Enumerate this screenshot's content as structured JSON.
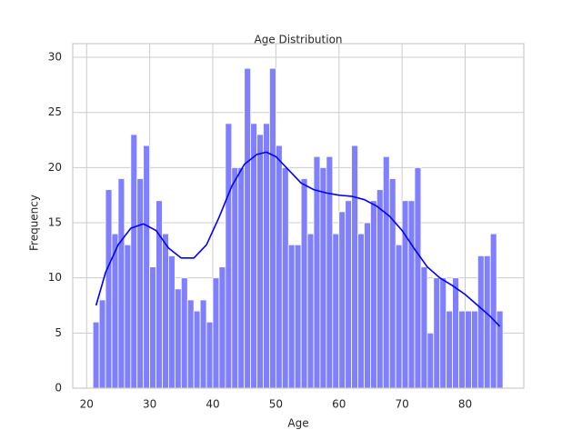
{
  "chart_data": {
    "type": "histogram",
    "title": "Age Distribution",
    "x_label": "Age",
    "y_label": "Frequency",
    "bins": [
      21,
      22,
      23,
      24,
      25,
      26,
      27,
      28,
      29,
      30,
      31,
      32,
      33,
      34,
      35,
      36,
      37,
      38,
      39,
      40,
      41,
      42,
      43,
      44,
      45,
      46,
      47,
      48,
      49,
      50,
      51,
      52,
      53,
      54,
      55,
      56,
      57,
      58,
      59,
      60,
      61,
      62,
      63,
      64,
      65,
      66,
      67,
      68,
      69,
      70,
      71,
      72,
      73,
      74,
      75,
      76,
      77,
      78,
      79,
      80,
      81,
      82,
      83,
      84,
      85,
      86
    ],
    "values": [
      6,
      8,
      18,
      14,
      19,
      13,
      23,
      19,
      22,
      11,
      17,
      14,
      12,
      9,
      10,
      8,
      7,
      8,
      6,
      10,
      11,
      24,
      20,
      20,
      29,
      24,
      23,
      24,
      29,
      22,
      20,
      13,
      13,
      19,
      14,
      21,
      20,
      21,
      14,
      16,
      17,
      22,
      14,
      15,
      17,
      18,
      21,
      19,
      13,
      17,
      17,
      20,
      11,
      5,
      10,
      10,
      7,
      10,
      7,
      7,
      7,
      12,
      12,
      14,
      7
    ],
    "color": "#8080ff",
    "kde": {
      "color": "#0000ff",
      "x": [
        21.5,
        23,
        25,
        27,
        29,
        31,
        33,
        35,
        37,
        39,
        41,
        43,
        45,
        47,
        48.5,
        50,
        52,
        54,
        56,
        58,
        60,
        62,
        64,
        66,
        68,
        70,
        72,
        74,
        76,
        78,
        80,
        82,
        84,
        85.5
      ],
      "y": [
        7.5,
        10.5,
        13,
        14.5,
        14.9,
        14.3,
        12.7,
        11.8,
        11.8,
        13,
        15.5,
        18.3,
        20.3,
        21.2,
        21.4,
        21,
        19.8,
        18.6,
        18,
        17.7,
        17.5,
        17.4,
        17.1,
        16.5,
        15.6,
        14.3,
        12.6,
        11,
        10,
        9.3,
        8.5,
        7.5,
        6.5,
        5.6
      ]
    },
    "xlim": [
      17.8,
      89.3
    ],
    "ylim": [
      0,
      31.24
    ],
    "xticks": [
      20,
      30,
      40,
      50,
      60,
      70,
      80
    ],
    "yticks": [
      0,
      5,
      10,
      15,
      20,
      25,
      30
    ],
    "grid": true
  }
}
